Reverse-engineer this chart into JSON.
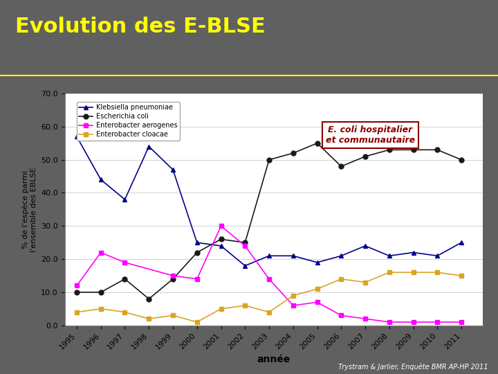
{
  "title": "Evolution des E-BLSE",
  "subtitle_annotation": "E. coli hospitalier\net communautaire",
  "xlabel": "année",
  "ylabel": "% de l'espèce parmi\nl'ensemble des EBLSE",
  "background_color": "#606060",
  "plot_bg_color": "#ffffff",
  "ylim": [
    0,
    70
  ],
  "yticks": [
    0.0,
    10.0,
    20.0,
    30.0,
    40.0,
    50.0,
    60.0,
    70.0
  ],
  "years": [
    1995,
    1996,
    1997,
    1998,
    1999,
    2000,
    2001,
    2002,
    2003,
    2004,
    2005,
    2006,
    2007,
    2008,
    2009,
    2010,
    2011
  ],
  "series": {
    "Klebsiella pneumoniae": {
      "color": "#00008B",
      "marker": "^",
      "values": [
        57,
        44,
        38,
        54,
        47,
        25,
        24,
        18,
        21,
        21,
        19,
        21,
        24,
        21,
        22,
        21,
        25
      ]
    },
    "Escherichia coli": {
      "color": "#1a1a1a",
      "marker": "o",
      "values": [
        10,
        10,
        14,
        8,
        14,
        22,
        26,
        25,
        50,
        52,
        55,
        48,
        51,
        53,
        53,
        53,
        50
      ]
    },
    "Enterobacter aerogenes": {
      "color": "#FF00FF",
      "marker": "s",
      "values": [
        12,
        22,
        19,
        null,
        15,
        14,
        30,
        24,
        14,
        6,
        7,
        3,
        2,
        1,
        1,
        1,
        1
      ]
    },
    "Enterobacter cloacae": {
      "color": "#DAA520",
      "marker": "s",
      "values": [
        4,
        5,
        4,
        2,
        3,
        1,
        5,
        6,
        4,
        9,
        11,
        14,
        13,
        16,
        16,
        16,
        15
      ]
    }
  },
  "title_color": "#FFFF00",
  "annotation_color": "#8B0000",
  "annotation_box_edge": "#8B0000",
  "footer_text": "Trystram & Jarlier, Enquête BMR AP-HP 2011",
  "footer_color": "#ffffff",
  "title_fontsize": 22,
  "ylabel_fontsize": 8,
  "xlabel_fontsize": 10,
  "legend_fontsize": 7,
  "tick_fontsize": 8
}
